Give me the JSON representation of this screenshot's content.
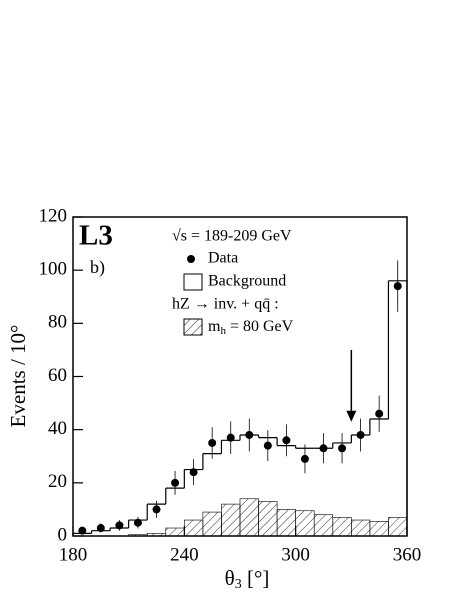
{
  "chart_data": {
    "type": "histogram",
    "title": "L3",
    "panel_label": "b)",
    "ylabel": "Events / 10°",
    "xlabel": [
      "θ",
      "3",
      " [°]"
    ],
    "energy_label": "√s = 189-209 GeV",
    "signal_heading": "hZ → inv. + qq̄ :",
    "bins": [
      180,
      190,
      200,
      210,
      220,
      230,
      240,
      250,
      260,
      270,
      280,
      290,
      300,
      310,
      320,
      330,
      340,
      350,
      360
    ],
    "series": [
      {
        "name": "Background",
        "values": [
          1,
          2,
          3,
          6,
          12,
          18,
          25,
          31,
          36,
          38,
          37,
          34,
          33,
          33,
          35,
          38,
          44,
          96
        ]
      },
      {
        "name": [
          "m",
          "h",
          " = 80 GeV"
        ],
        "values": [
          0,
          0,
          0,
          0.5,
          1,
          3,
          6,
          9,
          12,
          14,
          13,
          10,
          9.5,
          8,
          7,
          6,
          5.5,
          7
        ]
      }
    ],
    "data_points": {
      "name": "Data",
      "x": [
        185,
        195,
        205,
        215,
        225,
        235,
        245,
        255,
        265,
        275,
        285,
        295,
        305,
        315,
        325,
        335,
        345,
        355
      ],
      "values": [
        2,
        3,
        4,
        5,
        10,
        20,
        24,
        35,
        37,
        38,
        34,
        36,
        29,
        33,
        33,
        38,
        46,
        94
      ],
      "errors": [
        1.4,
        1.7,
        2,
        2.2,
        3.2,
        4.5,
        4.9,
        5.9,
        6.1,
        6.2,
        5.8,
        6,
        5.4,
        5.7,
        5.7,
        6.2,
        6.8,
        9.7
      ]
    },
    "arrow": {
      "x": 330,
      "from": 70,
      "to": 43
    },
    "xlim": [
      180,
      360
    ],
    "ylim": [
      0,
      120
    ],
    "xticks": [
      180,
      240,
      300,
      360
    ],
    "yticks": [
      0,
      20,
      40,
      60,
      80,
      100,
      120
    ]
  }
}
